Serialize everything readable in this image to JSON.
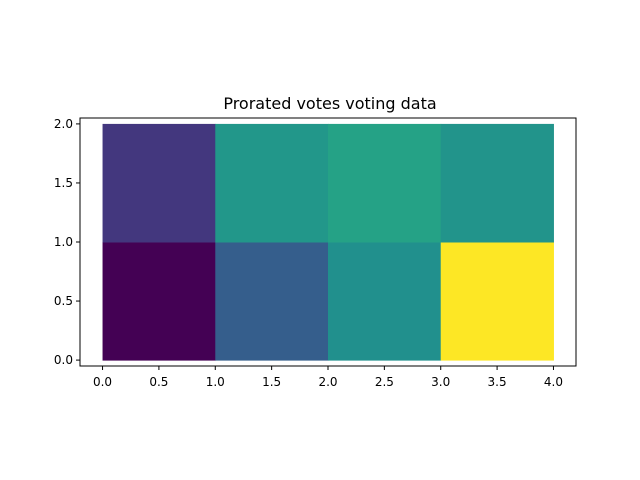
{
  "chart_data": {
    "type": "heatmap",
    "title": "Prorated votes voting data",
    "xlabel": "",
    "ylabel": "",
    "x_edges": [
      0,
      1,
      2,
      3,
      4
    ],
    "y_edges": [
      0,
      1,
      2
    ],
    "values": [
      [
        0.0,
        0.3,
        0.5,
        1.0
      ],
      [
        0.18,
        0.53,
        0.58,
        0.52
      ]
    ],
    "colormap": "viridis",
    "xlim": [
      -0.2,
      4.2
    ],
    "ylim": [
      -0.05,
      2.05
    ],
    "x_ticks": [
      "0.0",
      "0.5",
      "1.0",
      "1.5",
      "2.0",
      "2.5",
      "3.0",
      "3.5",
      "4.0"
    ],
    "y_ticks": [
      "0.0",
      "0.5",
      "1.0",
      "1.5",
      "2.0"
    ],
    "grid": false,
    "legend": "none"
  },
  "colors": {
    "background": "#ffffff",
    "axes": "#000000"
  }
}
